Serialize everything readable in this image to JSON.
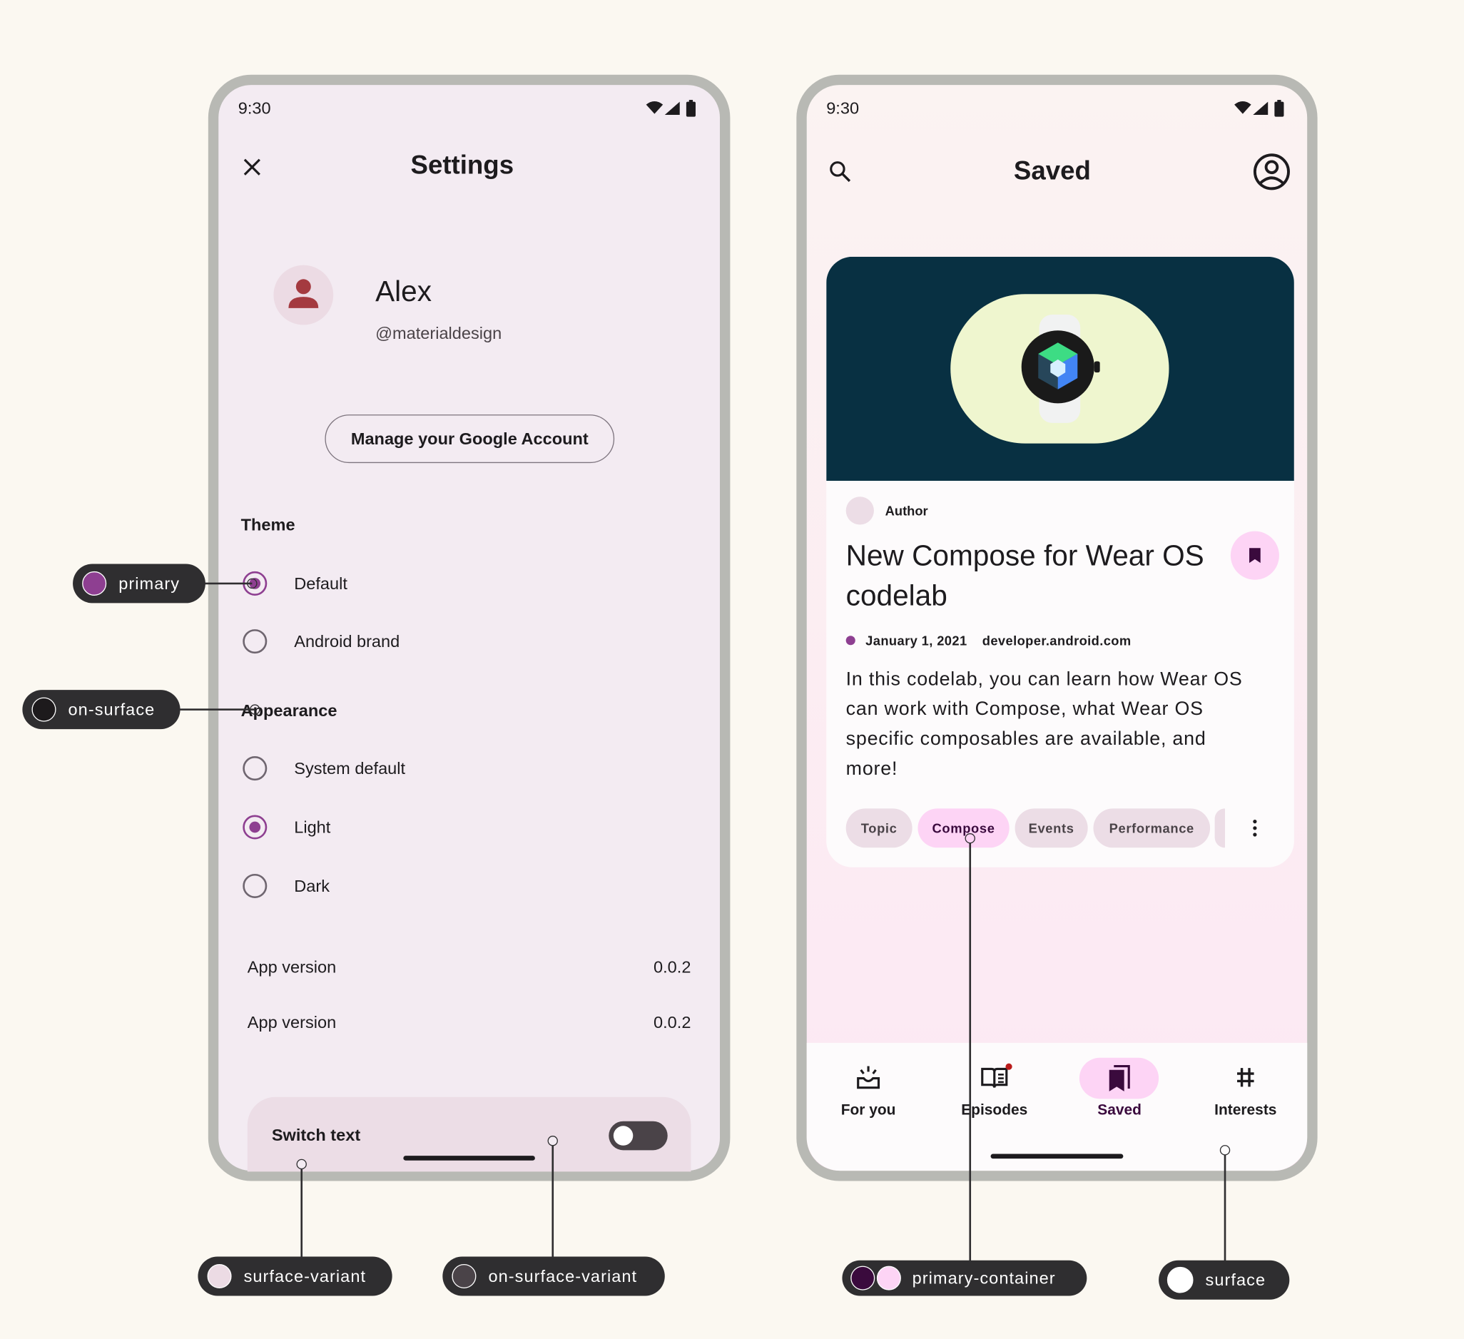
{
  "settings_screen": {
    "status_time": "9:30",
    "title": "Settings",
    "profile": {
      "name": "Alex",
      "handle": "@materialdesign"
    },
    "manage_account_label": "Manage your Google Account",
    "theme": {
      "heading": "Theme",
      "options": [
        {
          "label": "Default",
          "selected": true
        },
        {
          "label": "Android brand",
          "selected": false
        }
      ]
    },
    "appearance": {
      "heading": "Appearance",
      "options": [
        {
          "label": "System default",
          "selected": false
        },
        {
          "label": "Light",
          "selected": true
        },
        {
          "label": "Dark",
          "selected": false
        }
      ]
    },
    "info_rows": [
      {
        "label": "App version",
        "value": "0.0.2"
      },
      {
        "label": "App version",
        "value": "0.0.2"
      }
    ],
    "switch": {
      "label": "Switch text",
      "on": false
    }
  },
  "saved_screen": {
    "status_time": "9:30",
    "title": "Saved",
    "card": {
      "author": "Author",
      "title_line1": "New Compose for Wear OS",
      "title_line2": "codelab",
      "date": "January 1, 2021",
      "source": "developer.android.com",
      "body_lines": [
        "In this codelab, you can learn how Wear OS",
        "can work with Compose, what Wear OS",
        "specific composables are available, and",
        "more!"
      ],
      "chips": [
        {
          "label": "Topic",
          "selected": false
        },
        {
          "label": "Compose",
          "selected": true
        },
        {
          "label": "Events",
          "selected": false
        },
        {
          "label": "Performance",
          "selected": false
        }
      ],
      "bookmarked": true
    },
    "nav": [
      {
        "label": "For you",
        "icon": "upcoming-icon"
      },
      {
        "label": "Episodes",
        "icon": "menu-book-icon",
        "badge": true
      },
      {
        "label": "Saved",
        "icon": "bookmarks-icon",
        "active": true
      },
      {
        "label": "Interests",
        "icon": "tag-icon"
      }
    ]
  },
  "annotations": {
    "primary": {
      "label": "primary",
      "color": "#8e3f91"
    },
    "on_surface": {
      "label": "on-surface",
      "color": "#1d1a1c"
    },
    "surface_variant": {
      "label": "surface-variant",
      "color": "#ecdbe4"
    },
    "on_surface_variant": {
      "label": "on-surface-variant",
      "color": "#4a4348"
    },
    "primary_container": {
      "label": "primary-container",
      "colors": [
        "#3a0a3d",
        "#fdd4f5"
      ]
    },
    "surface": {
      "label": "surface",
      "color": "#ffffff"
    }
  }
}
